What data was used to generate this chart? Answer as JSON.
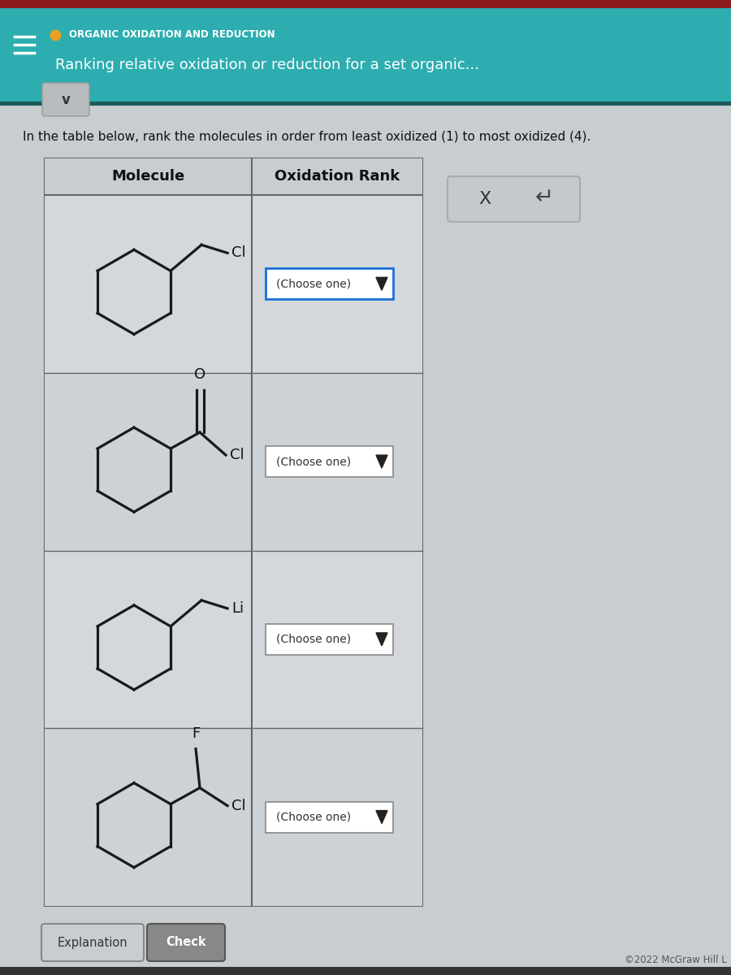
{
  "header_bg": "#2dadb0",
  "page_bg": "#c8cdd0",
  "content_bg": "#c8cdd0",
  "header_title": "ORGANIC OXIDATION AND REDUCTION",
  "header_subtitle": "Ranking relative oxidation or reduction for a set organic...",
  "dot_color": "#e8a020",
  "question_text": "In the table below, rank the molecules in order from least oxidized (1) to most oxidized (4).",
  "table_bg": "#d8dce0",
  "table_border": "#666666",
  "col1_header": "Molecule",
  "col2_header": "Oxidation Rank",
  "dropdown_text": "(Choose one)",
  "dropdown_border_row0": "#1a6fd4",
  "dropdown_border_row1": "#888888",
  "dropdown_border_row2": "#888888",
  "dropdown_border_row3": "#888888",
  "button_explanation": "Explanation",
  "button_check": "Check",
  "footer_text": "©2022 McGraw Hill L",
  "x_button_text": "X",
  "undo_symbol": "↵"
}
